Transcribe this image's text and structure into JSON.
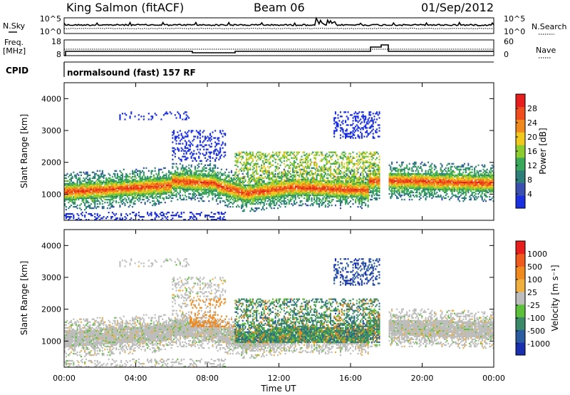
{
  "header": {
    "station": "King Salmon (fitACF)",
    "beam": "Beam 06",
    "date": "01/Sep/2012"
  },
  "strip": {
    "left_labels": {
      "nsky": "N.Sky",
      "freq": "Freq.",
      "freq_unit": "[MHz]",
      "cpid": "CPID"
    },
    "right_labels": {
      "nsearch": "N.Search",
      "nave": "Nave"
    },
    "noise_ticks_left": [
      "10^5",
      "10^0"
    ],
    "noise_ticks_right": [
      "10^5",
      "10^0"
    ],
    "freq_ticks_left": [
      "18",
      "8"
    ],
    "nave_ticks_right": [
      "60",
      "0"
    ],
    "cpid_text": "normalsound (fast) 157 RF"
  },
  "chart_data": [
    {
      "type": "heatmap",
      "name": "power",
      "ylabel": "Slant Range [km]",
      "yticks": [
        "4000",
        "3000",
        "2000",
        "1000"
      ],
      "ylim": [
        180,
        4500
      ],
      "xlim": [
        0,
        24
      ],
      "colorbar": {
        "label": "Power [dB]",
        "ticks": [
          "28",
          "24",
          "20",
          "16",
          "12",
          "8",
          "4"
        ],
        "range": [
          0,
          32
        ],
        "colors": [
          "#1a2fe0",
          "#3a4fb0",
          "#2e7f7a",
          "#3aa85a",
          "#8ccc2e",
          "#f0c81e",
          "#f08a1e",
          "#ef4d1e",
          "#e81e1e"
        ]
      }
    },
    {
      "type": "heatmap",
      "name": "velocity",
      "ylabel": "Slant Range [km]",
      "yticks": [
        "4000",
        "3000",
        "2000",
        "1000"
      ],
      "ylim": [
        180,
        4500
      ],
      "xlim": [
        0,
        24
      ],
      "colorbar": {
        "label": "Velocity [m s⁻¹]",
        "ticks": [
          "1000",
          "500",
          "100",
          "25",
          "-25",
          "-100",
          "-500",
          "-1000"
        ],
        "colors": [
          "#1a2fb0",
          "#2a5aa0",
          "#3a8a6a",
          "#5cc03a",
          "#bdbdbd",
          "#f0b040",
          "#f08a1e",
          "#ef5a1e",
          "#e81e1e"
        ]
      }
    }
  ],
  "xaxis": {
    "ticks": [
      "00:00",
      "04:00",
      "08:00",
      "12:00",
      "16:00",
      "20:00",
      "00:00"
    ],
    "label": "Time UT"
  }
}
